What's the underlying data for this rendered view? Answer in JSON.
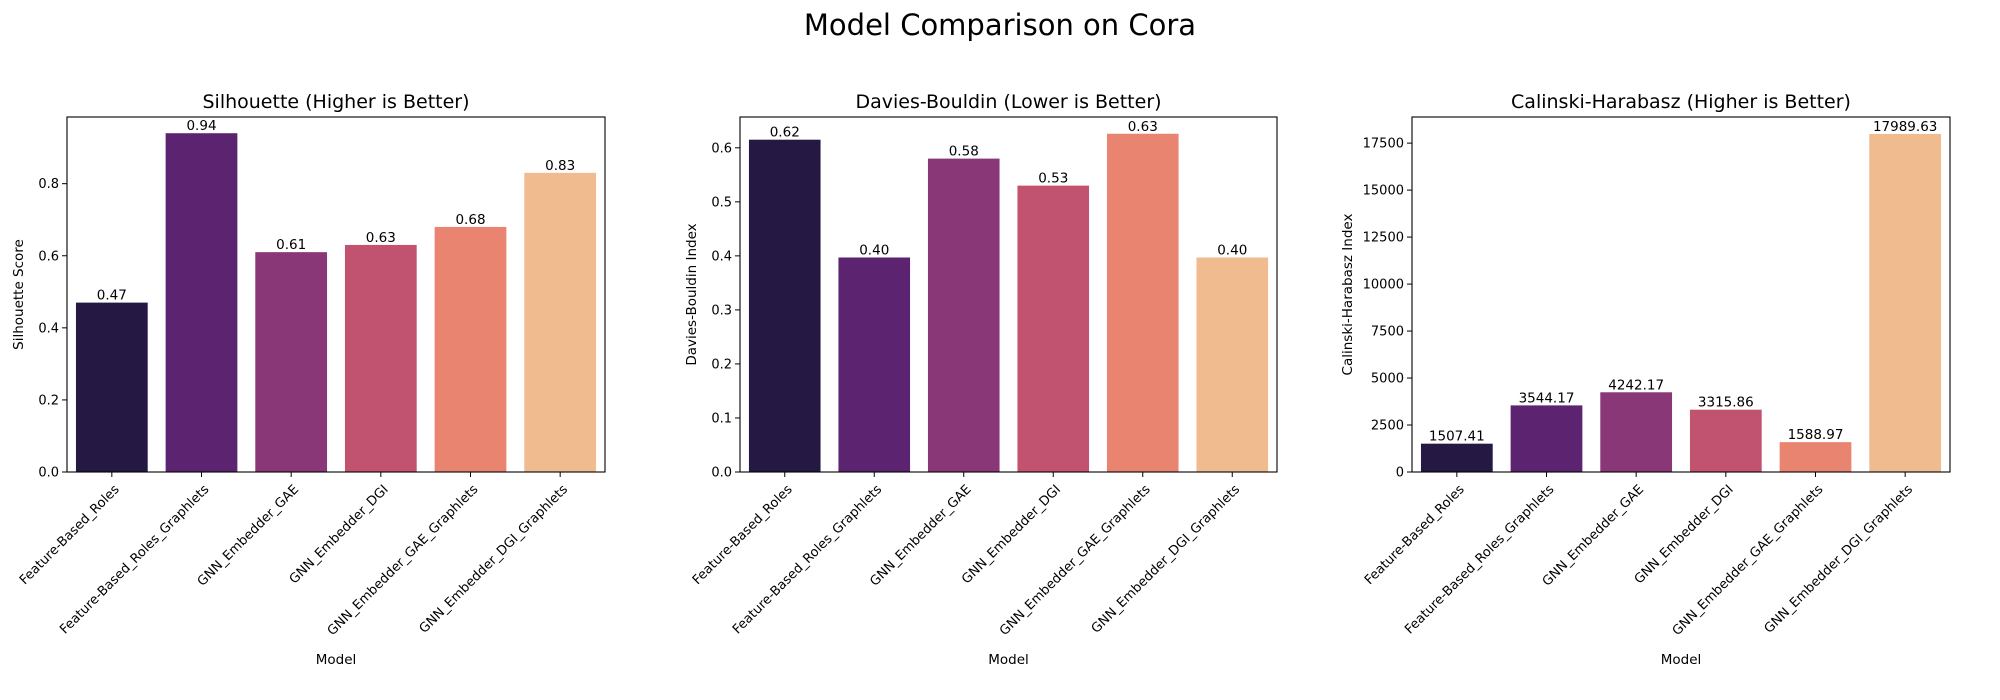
{
  "figure": {
    "title": "Model Comparison on Cora"
  },
  "chart_data": [
    {
      "type": "bar",
      "title": "Silhouette (Higher is Better)",
      "xlabel": "Model",
      "ylabel": "Silhouette Score",
      "categories": [
        "Feature-Based_Roles",
        "Feature-Based_Roles_Graphlets",
        "GNN_Embedder_GAE",
        "GNN_Embedder_DGI",
        "GNN_Embedder_GAE_Graphlets",
        "GNN_Embedder_DGI_Graphlets"
      ],
      "values": [
        0.47,
        0.94,
        0.61,
        0.63,
        0.68,
        0.83
      ],
      "value_labels": [
        "0.47",
        "0.94",
        "0.61",
        "0.63",
        "0.68",
        "0.83"
      ],
      "ylim": [
        0,
        0.985
      ],
      "yticks": [
        0.0,
        0.2,
        0.4,
        0.6,
        0.8
      ],
      "ytick_labels": [
        "0.0",
        "0.2",
        "0.4",
        "0.6",
        "0.8"
      ],
      "colors": [
        "#251944",
        "#5c2370",
        "#8a3777",
        "#c25370",
        "#e88470",
        "#f0bb8f"
      ],
      "grid": false,
      "legend": "none"
    },
    {
      "type": "bar",
      "title": "Davies-Bouldin (Lower is Better)",
      "xlabel": "Model",
      "ylabel": "Davies-Bouldin Index",
      "categories": [
        "Feature-Based_Roles",
        "Feature-Based_Roles_Graphlets",
        "GNN_Embedder_GAE",
        "GNN_Embedder_DGI",
        "GNN_Embedder_GAE_Graphlets",
        "GNN_Embedder_DGI_Graphlets"
      ],
      "values": [
        0.615,
        0.397,
        0.58,
        0.53,
        0.626,
        0.397
      ],
      "value_labels": [
        "0.62",
        "0.40",
        "0.58",
        "0.53",
        "0.63",
        "0.40"
      ],
      "ylim": [
        0,
        0.657
      ],
      "yticks": [
        0.0,
        0.1,
        0.2,
        0.3,
        0.4,
        0.5,
        0.6
      ],
      "ytick_labels": [
        "0.0",
        "0.1",
        "0.2",
        "0.3",
        "0.4",
        "0.5",
        "0.6"
      ],
      "colors": [
        "#251944",
        "#5c2370",
        "#8a3777",
        "#c25370",
        "#e88470",
        "#f0bb8f"
      ],
      "grid": false,
      "legend": "none"
    },
    {
      "type": "bar",
      "title": "Calinski-Harabasz (Higher is Better)",
      "xlabel": "Model",
      "ylabel": "Calinski-Harabasz Index",
      "categories": [
        "Feature-Based_Roles",
        "Feature-Based_Roles_Graphlets",
        "GNN_Embedder_GAE",
        "GNN_Embedder_DGI",
        "GNN_Embedder_GAE_Graphlets",
        "GNN_Embedder_DGI_Graphlets"
      ],
      "values": [
        1507.41,
        3544.17,
        4242.17,
        3315.86,
        1588.97,
        17989.63
      ],
      "value_labels": [
        "1507.41",
        "3544.17",
        "4242.17",
        "3315.86",
        "1588.97",
        "17989.63"
      ],
      "ylim": [
        0,
        18890
      ],
      "yticks": [
        0,
        2500,
        5000,
        7500,
        10000,
        12500,
        15000,
        17500
      ],
      "ytick_labels": [
        "0",
        "2500",
        "5000",
        "7500",
        "10000",
        "12500",
        "15000",
        "17500"
      ],
      "colors": [
        "#251944",
        "#5c2370",
        "#8a3777",
        "#c25370",
        "#e88470",
        "#f0bb8f"
      ],
      "grid": false,
      "legend": "none"
    }
  ]
}
